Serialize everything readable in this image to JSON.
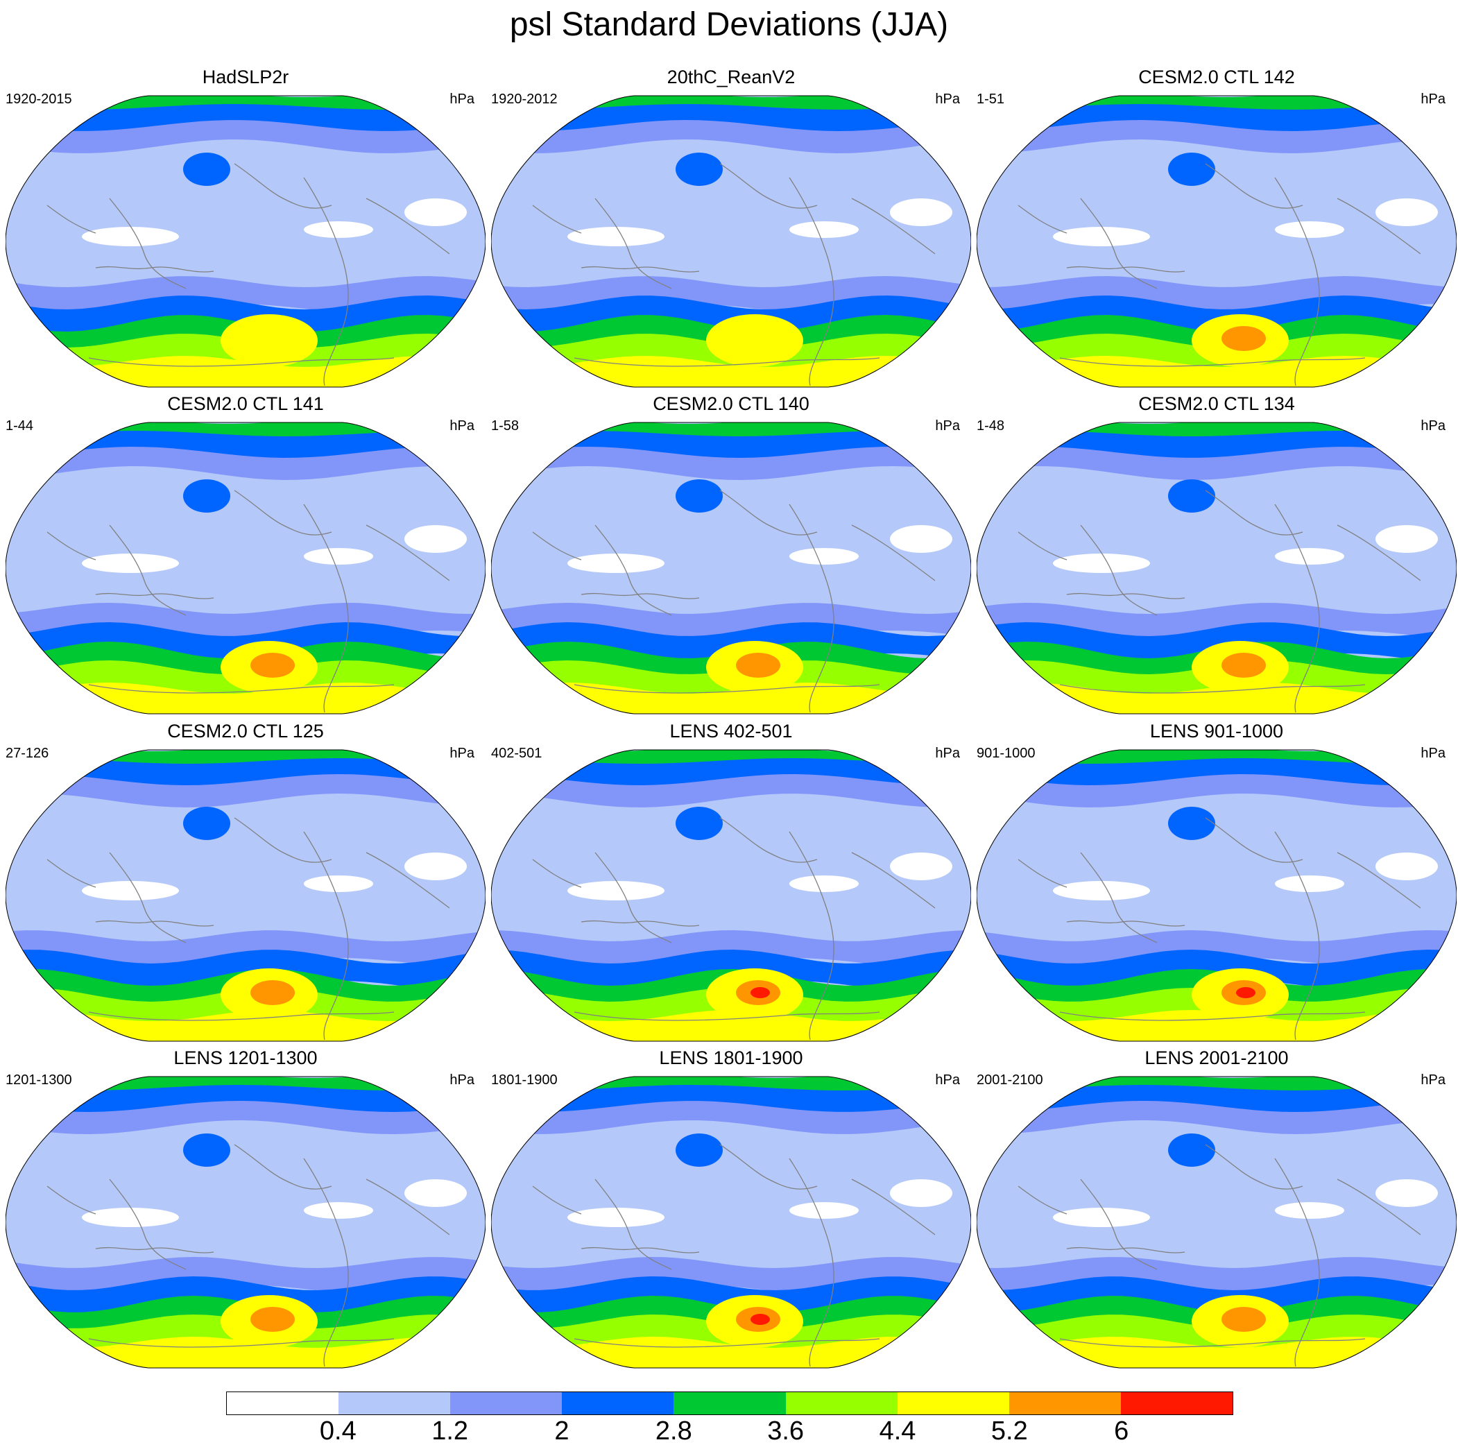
{
  "title": "psl Standard Deviations (JJA)",
  "panels": [
    {
      "title": "HadSLP2r",
      "left": "1920-2015",
      "right": "hPa"
    },
    {
      "title": "20thC_ReanV2",
      "left": "1920-2012",
      "right": "hPa"
    },
    {
      "title": "CESM2.0 CTL 142",
      "left": "1-51",
      "right": "hPa"
    },
    {
      "title": "CESM2.0 CTL 141",
      "left": "1-44",
      "right": "hPa"
    },
    {
      "title": "CESM2.0 CTL 140",
      "left": "1-58",
      "right": "hPa"
    },
    {
      "title": "CESM2.0 CTL 134",
      "left": "1-48",
      "right": "hPa"
    },
    {
      "title": "CESM2.0 CTL 125",
      "left": "27-126",
      "right": "hPa"
    },
    {
      "title": "LENS 402-501",
      "left": "402-501",
      "right": "hPa"
    },
    {
      "title": "LENS 901-1000",
      "left": "901-1000",
      "right": "hPa"
    },
    {
      "title": "LENS 1201-1300",
      "left": "1201-1300",
      "right": "hPa"
    },
    {
      "title": "LENS 1801-1900",
      "left": "1801-1900",
      "right": "hPa"
    },
    {
      "title": "LENS 2001-2100",
      "left": "2001-2100",
      "right": "hPa"
    }
  ],
  "colorbar": {
    "colors": [
      "#ffffff",
      "#b4c8fa",
      "#8296fa",
      "#0064ff",
      "#00c832",
      "#96ff00",
      "#ffff00",
      "#ff9600",
      "#ff1900"
    ],
    "labels": [
      "0.4",
      "1.2",
      "2",
      "2.8",
      "3.6",
      "4.4",
      "5.2",
      "6"
    ]
  }
}
